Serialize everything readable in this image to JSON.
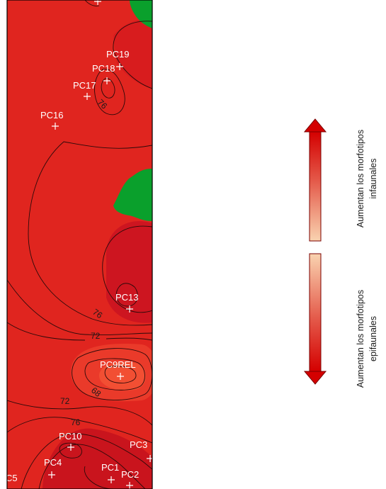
{
  "map": {
    "stations": [
      "PC19",
      "PC18",
      "PC17",
      "PC16",
      "PC13",
      "PC9REL",
      "PC10",
      "PC3",
      "PC4",
      "PC1",
      "PC2",
      "C5"
    ],
    "contour_labels": [
      "76",
      "76",
      "72",
      "68",
      "72",
      "76"
    ],
    "colors": {
      "base_red": "#e0251f",
      "light_red": "#f04a32",
      "deep_red": "#c7141c",
      "land_green": "#0aa02c",
      "contour_line": "#2a0a0a"
    }
  },
  "legend": {
    "up_label_line1": "Aumentan los morfotipos",
    "up_label_line2": "infaunales",
    "down_label_line1": "Aumentan los morfotipos",
    "down_label_line2": "epifaunales",
    "gradient_light": "#f9d3b0",
    "gradient_dark": "#d40000"
  }
}
